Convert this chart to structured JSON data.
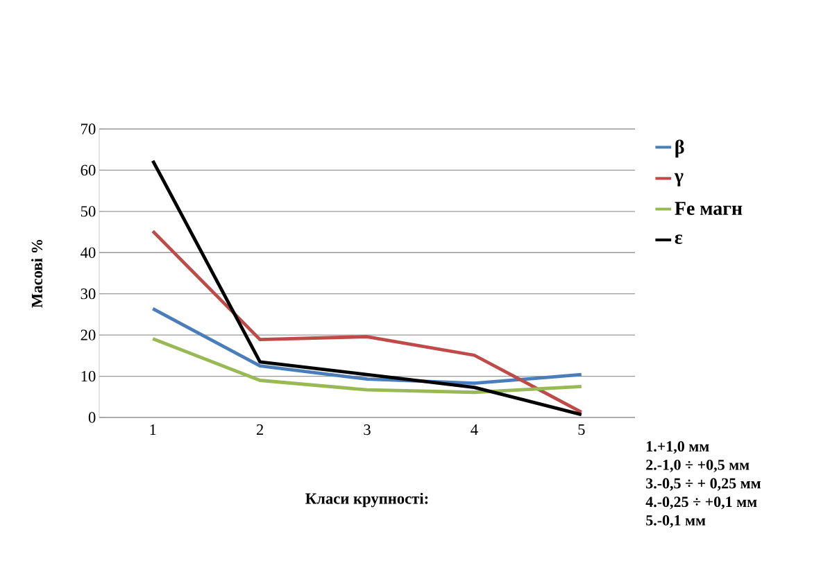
{
  "chart_data": {
    "type": "line",
    "ylabel": "Масові %",
    "xlabel": "Класи крупності:",
    "categories": [
      "1",
      "2",
      "3",
      "4",
      "5"
    ],
    "series": [
      {
        "name": "β",
        "color": "#4a7ebb",
        "values": [
          26.4,
          12.5,
          9.3,
          8.3,
          10.4
        ]
      },
      {
        "name": "γ",
        "color": "#be4b48",
        "values": [
          45.2,
          18.9,
          19.6,
          15.1,
          1.3
        ]
      },
      {
        "name": "Fe магн",
        "color": "#98b954",
        "values": [
          19.1,
          9.0,
          6.7,
          6.1,
          7.5
        ]
      },
      {
        "name": "ε",
        "color": "#000000",
        "values": [
          62.3,
          13.5,
          10.4,
          7.3,
          0.7
        ]
      }
    ],
    "ylim": [
      0,
      70
    ],
    "yticks": [
      0,
      10,
      20,
      30,
      40,
      50,
      60,
      70
    ],
    "grid": "y",
    "legend": "right",
    "marker": "none",
    "line_style": "solid",
    "annotations": [
      "1.+1,0 мм",
      "2.-1,0 ÷ +0,5 мм",
      "3.-0,5 ÷ + 0,25 мм",
      "4.-0,25 ÷ +0,1 мм",
      "5.-0,1 мм"
    ]
  }
}
